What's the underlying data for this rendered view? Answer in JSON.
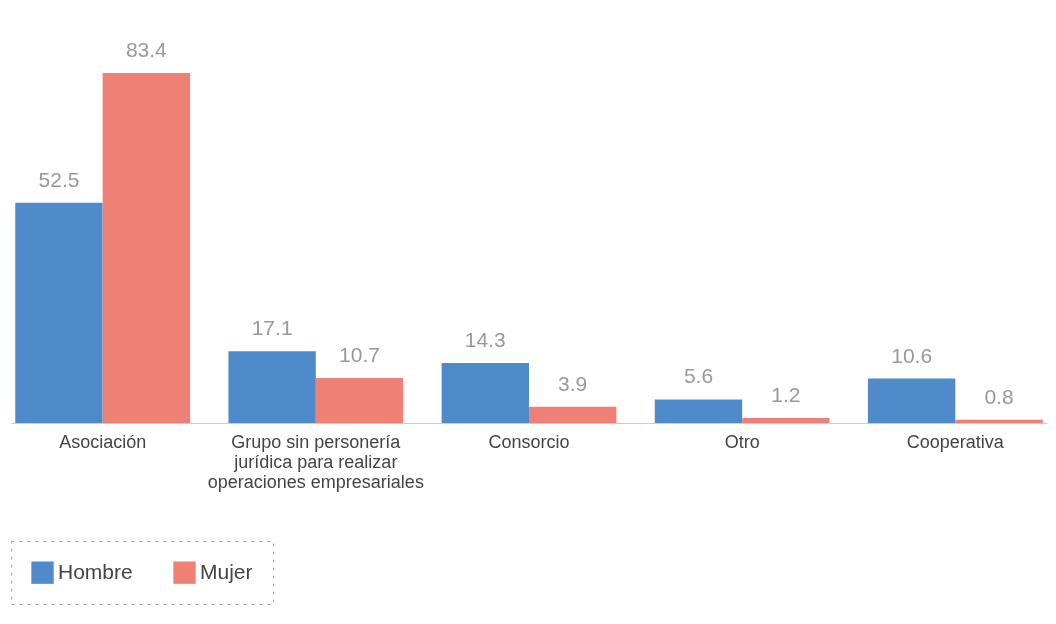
{
  "chart_data": {
    "type": "bar",
    "categories": [
      "Asociación",
      "Grupo sin personería jurídica para realizar operaciones empresariales",
      "Consorcio",
      "Otro",
      "Cooperativa"
    ],
    "series": [
      {
        "name": "Hombre",
        "color": "#4f8bcb",
        "values": [
          52.5,
          17.1,
          14.3,
          5.6,
          10.6
        ]
      },
      {
        "name": "Mujer",
        "color": "#ef8076",
        "values": [
          83.4,
          10.7,
          3.9,
          1.2,
          0.8
        ]
      }
    ],
    "data_labels": true,
    "legend": "bottom",
    "grid": false
  }
}
